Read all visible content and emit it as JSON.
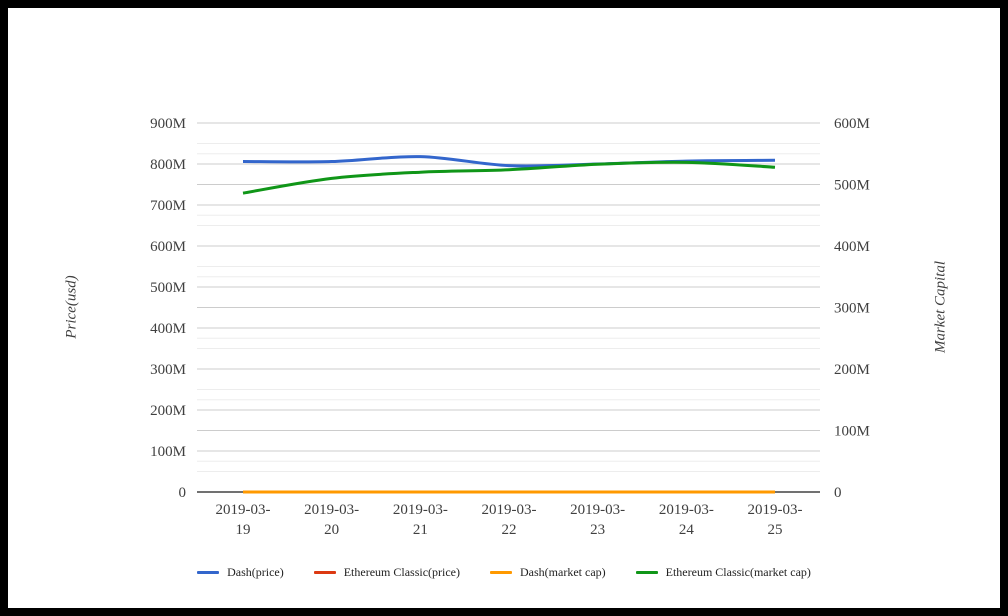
{
  "chart_data": {
    "type": "line",
    "title": "",
    "categories": [
      "2019-03-19",
      "2019-03-20",
      "2019-03-21",
      "2019-03-22",
      "2019-03-23",
      "2019-03-24",
      "2019-03-25"
    ],
    "x_tick_lines": [
      [
        "2019-03-",
        "19"
      ],
      [
        "2019-03-",
        "20"
      ],
      [
        "2019-03-",
        "21"
      ],
      [
        "2019-03-",
        "22"
      ],
      [
        "2019-03-",
        "23"
      ],
      [
        "2019-03-",
        "24"
      ],
      [
        "2019-03-",
        "25"
      ]
    ],
    "left_axis": {
      "title": "Price(usd)",
      "min": 0,
      "max": 900,
      "major_step": 100,
      "minor_step": 50,
      "unit": "M",
      "tick_labels": [
        "0",
        "100M",
        "200M",
        "300M",
        "400M",
        "500M",
        "600M",
        "700M",
        "800M",
        "900M"
      ],
      "tick_values": [
        0,
        100,
        200,
        300,
        400,
        500,
        600,
        700,
        800,
        900
      ]
    },
    "right_axis": {
      "title": "Market Capital",
      "min": 0,
      "max": 600,
      "major_step": 100,
      "minor_step": 50,
      "unit": "M",
      "tick_labels": [
        "0",
        "100M",
        "200M",
        "300M",
        "400M",
        "500M",
        "600M"
      ],
      "tick_values": [
        0,
        100,
        200,
        300,
        400,
        500,
        600
      ]
    },
    "grid": {
      "major_color": "#cccccc",
      "minor_color": "#ededed",
      "zero_line_color": "#424242",
      "minor_gridlines": true
    },
    "legend_position": "bottom",
    "series": [
      {
        "name": "Dash(price)",
        "axis": "left",
        "color": "#3366cc",
        "values": [
          806,
          806,
          818,
          796,
          800,
          807,
          809
        ]
      },
      {
        "name": "Ethereum Classic(price)",
        "axis": "left",
        "color": "#dc3912",
        "values": [
          0,
          0,
          0,
          0,
          0,
          0,
          0
        ]
      },
      {
        "name": "Dash(market cap)",
        "axis": "right",
        "color": "#ff9900",
        "values": [
          0,
          0,
          0,
          0,
          0,
          0,
          0
        ]
      },
      {
        "name": "Ethereum Classic(market cap)",
        "axis": "right",
        "color": "#109618",
        "values": [
          486,
          510,
          520,
          524,
          533,
          536,
          528
        ]
      }
    ]
  }
}
